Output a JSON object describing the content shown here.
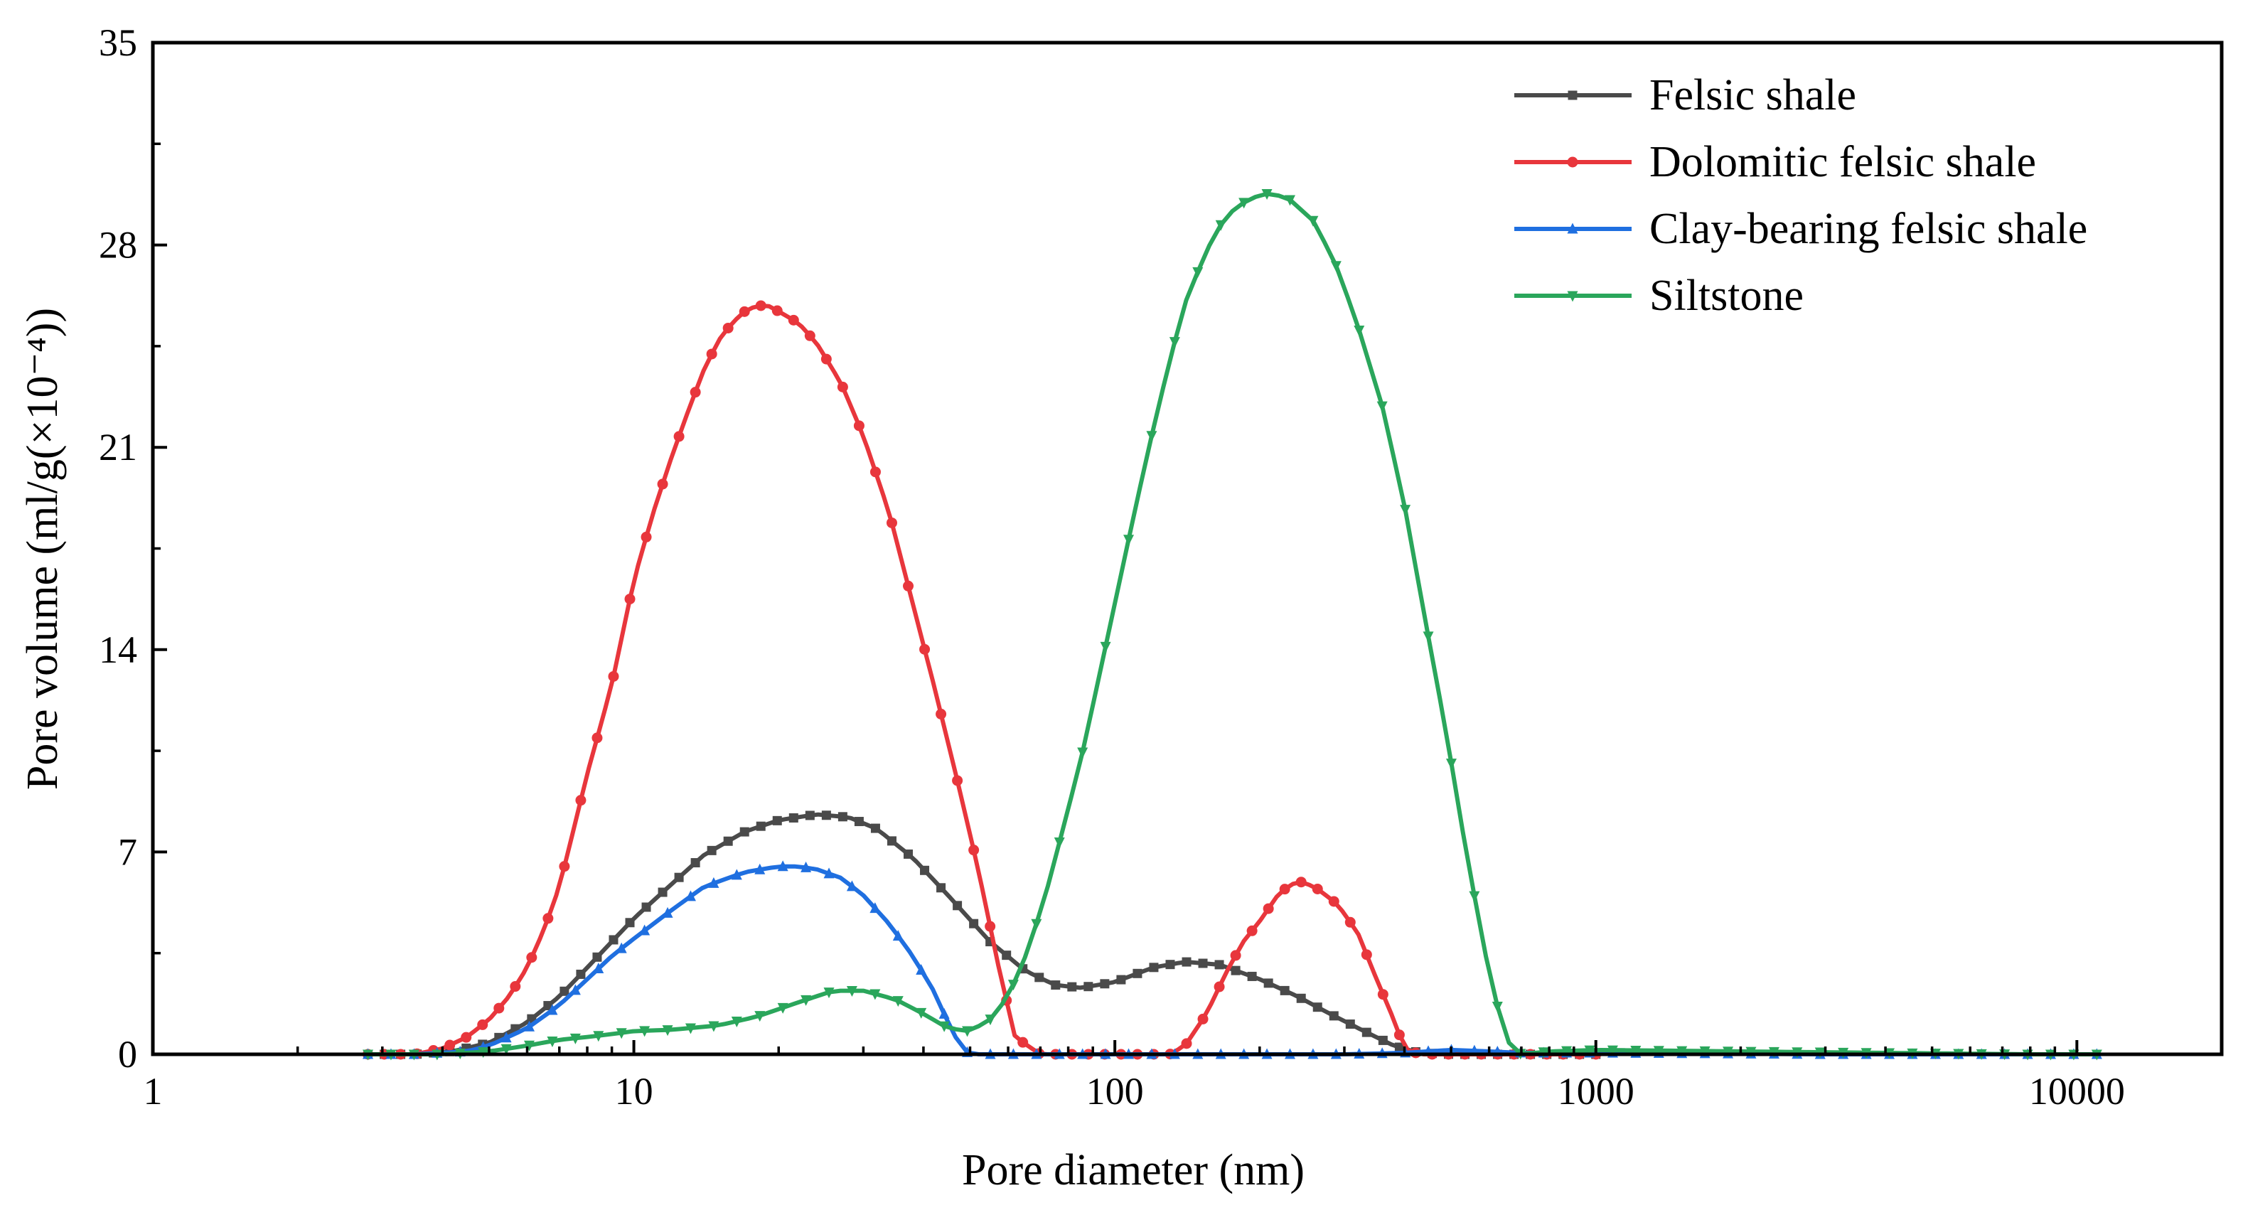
{
  "chart_data": {
    "type": "line",
    "title": "",
    "xlabel": "Pore diameter (nm)",
    "ylabel": "Pore volume (ml/g(×10⁻⁴))",
    "xscale": "log",
    "xlim": [
      1,
      20000
    ],
    "ylim": [
      0,
      35
    ],
    "x_ticks": [
      1,
      10,
      100,
      1000,
      10000
    ],
    "x_tick_labels": [
      "1",
      "10",
      "100",
      "1000",
      "10000"
    ],
    "y_ticks": [
      0,
      7,
      14,
      21,
      28,
      35
    ],
    "y_tick_labels": [
      "0",
      "7",
      "14",
      "21",
      "28",
      "35"
    ],
    "grid": false,
    "legend_position": "top-right",
    "series": [
      {
        "name": "Felsic shale",
        "color": "#4a4a4a",
        "marker": "square",
        "points": [
          [
            2.8,
            0
          ],
          [
            3.5,
            0
          ],
          [
            4.2,
            0.1
          ],
          [
            5,
            0.4
          ],
          [
            6,
            1.1
          ],
          [
            7,
            2.0
          ],
          [
            8,
            3.0
          ],
          [
            9,
            3.9
          ],
          [
            10,
            4.7
          ],
          [
            12,
            5.9
          ],
          [
            14,
            6.9
          ],
          [
            17,
            7.7
          ],
          [
            20,
            8.1
          ],
          [
            24,
            8.3
          ],
          [
            28,
            8.2
          ],
          [
            32,
            7.8
          ],
          [
            38,
            6.8
          ],
          [
            45,
            5.5
          ],
          [
            55,
            3.9
          ],
          [
            65,
            2.9
          ],
          [
            75,
            2.4
          ],
          [
            85,
            2.3
          ],
          [
            100,
            2.5
          ],
          [
            120,
            3.0
          ],
          [
            140,
            3.2
          ],
          [
            165,
            3.1
          ],
          [
            200,
            2.6
          ],
          [
            240,
            2.0
          ],
          [
            280,
            1.4
          ],
          [
            330,
            0.8
          ],
          [
            380,
            0.3
          ],
          [
            430,
            0.05
          ],
          [
            500,
            0
          ],
          [
            700,
            0
          ],
          [
            1000,
            0
          ]
        ]
      },
      {
        "name": "Dolomitic felsic shale",
        "color": "#e8363c",
        "marker": "circle",
        "points": [
          [
            2.8,
            0
          ],
          [
            3.5,
            0
          ],
          [
            4,
            0.2
          ],
          [
            4.5,
            0.6
          ],
          [
            5,
            1.2
          ],
          [
            5.5,
            2.0
          ],
          [
            6,
            3.0
          ],
          [
            6.5,
            4.3
          ],
          [
            7,
            5.8
          ],
          [
            7.5,
            7.8
          ],
          [
            8,
            9.7
          ],
          [
            9,
            12.8
          ],
          [
            10,
            16.4
          ],
          [
            11,
            18.8
          ],
          [
            12,
            20.7
          ],
          [
            13,
            22.3
          ],
          [
            14,
            23.7
          ],
          [
            15,
            24.7
          ],
          [
            16,
            25.3
          ],
          [
            17,
            25.7
          ],
          [
            18,
            25.9
          ],
          [
            19,
            25.9
          ],
          [
            20,
            25.7
          ],
          [
            22,
            25.3
          ],
          [
            24,
            24.6
          ],
          [
            27,
            23.2
          ],
          [
            30,
            21.4
          ],
          [
            34,
            18.7
          ],
          [
            38,
            15.6
          ],
          [
            42,
            12.8
          ],
          [
            47,
            9.5
          ],
          [
            52,
            6.4
          ],
          [
            57,
            3.2
          ],
          [
            62,
            0.6
          ],
          [
            70,
            0
          ],
          [
            100,
            0
          ],
          [
            130,
            0
          ],
          [
            140,
            0.3
          ],
          [
            155,
            1.4
          ],
          [
            170,
            2.8
          ],
          [
            185,
            3.9
          ],
          [
            200,
            4.6
          ],
          [
            220,
            5.6
          ],
          [
            240,
            6.0
          ],
          [
            260,
            5.8
          ],
          [
            290,
            5.2
          ],
          [
            320,
            4.2
          ],
          [
            350,
            2.6
          ],
          [
            380,
            1.2
          ],
          [
            400,
            0.2
          ],
          [
            430,
            0
          ],
          [
            600,
            0
          ],
          [
            1000,
            0
          ]
        ]
      },
      {
        "name": "Clay-bearing felsic shale",
        "color": "#1f6fe0",
        "marker": "triangle-up",
        "points": [
          [
            2.8,
            0
          ],
          [
            3.5,
            0
          ],
          [
            4.5,
            0.1
          ],
          [
            5,
            0.3
          ],
          [
            6,
            0.9
          ],
          [
            7,
            1.7
          ],
          [
            8,
            2.6
          ],
          [
            9,
            3.4
          ],
          [
            10,
            4.0
          ],
          [
            12,
            5.0
          ],
          [
            14,
            5.8
          ],
          [
            17,
            6.3
          ],
          [
            20,
            6.5
          ],
          [
            22,
            6.5
          ],
          [
            24,
            6.4
          ],
          [
            27,
            6.1
          ],
          [
            30,
            5.5
          ],
          [
            34,
            4.5
          ],
          [
            38,
            3.4
          ],
          [
            42,
            2.2
          ],
          [
            45,
            1.1
          ],
          [
            48,
            0.2
          ],
          [
            50,
            0
          ],
          [
            100,
            0
          ],
          [
            300,
            0
          ],
          [
            400,
            0.05
          ],
          [
            500,
            0.15
          ],
          [
            600,
            0.1
          ],
          [
            700,
            0.05
          ],
          [
            1000,
            0.05
          ],
          [
            3000,
            0
          ],
          [
            11000,
            0
          ]
        ]
      },
      {
        "name": "Siltstone",
        "color": "#2aa65b",
        "marker": "triangle-down",
        "points": [
          [
            2.8,
            0
          ],
          [
            4,
            0
          ],
          [
            5,
            0.1
          ],
          [
            6,
            0.3
          ],
          [
            7,
            0.5
          ],
          [
            8,
            0.6
          ],
          [
            9,
            0.7
          ],
          [
            10,
            0.8
          ],
          [
            12,
            0.85
          ],
          [
            15,
            1.0
          ],
          [
            18,
            1.3
          ],
          [
            22,
            1.8
          ],
          [
            26,
            2.2
          ],
          [
            30,
            2.2
          ],
          [
            35,
            1.9
          ],
          [
            40,
            1.4
          ],
          [
            45,
            0.9
          ],
          [
            50,
            0.8
          ],
          [
            55,
            1.2
          ],
          [
            60,
            2.0
          ],
          [
            66,
            3.6
          ],
          [
            72,
            5.6
          ],
          [
            78,
            7.8
          ],
          [
            85,
            10.2
          ],
          [
            92,
            12.8
          ],
          [
            100,
            15.6
          ],
          [
            110,
            18.8
          ],
          [
            120,
            21.6
          ],
          [
            130,
            24.0
          ],
          [
            140,
            26.0
          ],
          [
            155,
            27.8
          ],
          [
            170,
            29.0
          ],
          [
            190,
            29.6
          ],
          [
            210,
            29.8
          ],
          [
            230,
            29.6
          ],
          [
            260,
            28.8
          ],
          [
            290,
            27.2
          ],
          [
            320,
            25.2
          ],
          [
            360,
            22.4
          ],
          [
            400,
            19.0
          ],
          [
            440,
            15.2
          ],
          [
            490,
            11.0
          ],
          [
            540,
            6.8
          ],
          [
            600,
            2.8
          ],
          [
            650,
            0.5
          ],
          [
            700,
            0
          ],
          [
            800,
            0.1
          ],
          [
            1000,
            0.15
          ],
          [
            2000,
            0.1
          ],
          [
            4000,
            0.05
          ],
          [
            8000,
            0
          ],
          [
            11000,
            0
          ]
        ]
      }
    ]
  }
}
